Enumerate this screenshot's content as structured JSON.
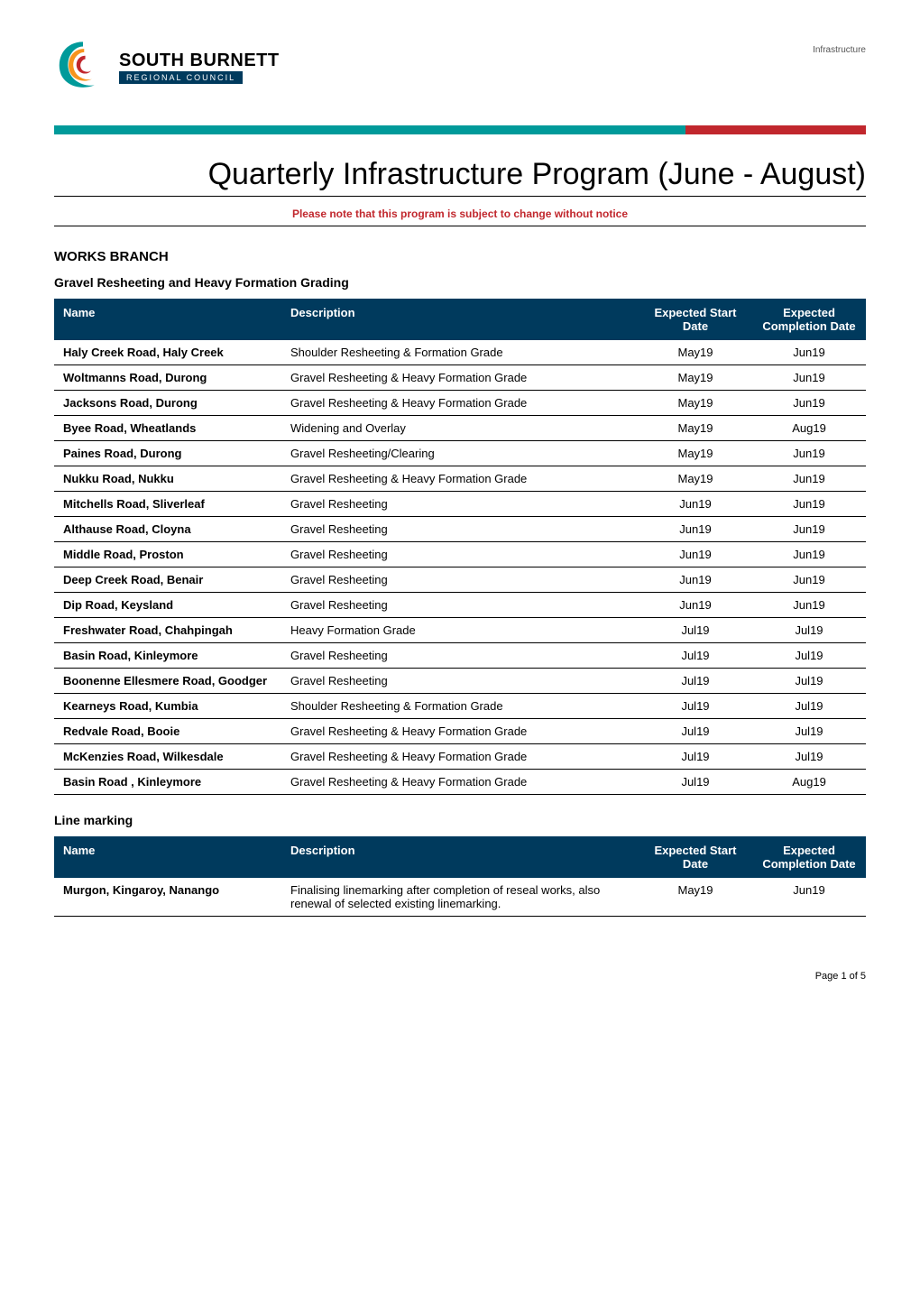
{
  "headerLabel": "Infrastructure",
  "logo": {
    "textTop": "SOUTH BURNETT",
    "textBottom": "REGIONAL COUNCIL",
    "swirlColors": {
      "outer": "#009a9a",
      "mid": "#f7941d",
      "inner": "#c1272d"
    },
    "bandColor": "#003a5d"
  },
  "dividerColors": {
    "teal": "#009a9a",
    "red": "#c1272d"
  },
  "pageTitle": "Quarterly Infrastructure Program (June - August)",
  "notice": "Please note that this program is subject to change without notice",
  "worksBranch": {
    "heading": "WORKS BRANCH",
    "gravel": {
      "subheading": "Gravel Resheeting and Heavy Formation Grading",
      "columns": [
        "Name",
        "Description",
        "Expected Start Date",
        "Expected Completion Date"
      ],
      "rows": [
        {
          "name": "Haly Creek Road, Haly Creek",
          "desc": "Shoulder Resheeting & Formation Grade",
          "start": "May19",
          "end": "Jun19"
        },
        {
          "name": "Woltmanns Road, Durong",
          "desc": "Gravel Resheeting & Heavy Formation Grade",
          "start": "May19",
          "end": "Jun19"
        },
        {
          "name": "Jacksons Road, Durong",
          "desc": "Gravel Resheeting & Heavy Formation Grade",
          "start": "May19",
          "end": "Jun19"
        },
        {
          "name": "Byee Road, Wheatlands",
          "desc": "Widening and Overlay",
          "start": "May19",
          "end": "Aug19"
        },
        {
          "name": "Paines Road, Durong",
          "desc": "Gravel Resheeting/Clearing",
          "start": "May19",
          "end": "Jun19"
        },
        {
          "name": "Nukku Road, Nukku",
          "desc": "Gravel Resheeting & Heavy Formation Grade",
          "start": "May19",
          "end": "Jun19"
        },
        {
          "name": "Mitchells Road, Sliverleaf",
          "desc": "Gravel Resheeting",
          "start": "Jun19",
          "end": "Jun19"
        },
        {
          "name": "Althause Road, Cloyna",
          "desc": "Gravel Resheeting",
          "start": "Jun19",
          "end": "Jun19"
        },
        {
          "name": "Middle Road, Proston",
          "desc": "Gravel Resheeting",
          "start": "Jun19",
          "end": "Jun19"
        },
        {
          "name": "Deep Creek Road, Benair",
          "desc": "Gravel Resheeting",
          "start": "Jun19",
          "end": "Jun19"
        },
        {
          "name": "Dip Road, Keysland",
          "desc": "Gravel Resheeting",
          "start": "Jun19",
          "end": "Jun19"
        },
        {
          "name": "Freshwater Road, Chahpingah",
          "desc": "Heavy Formation Grade",
          "start": "Jul19",
          "end": "Jul19"
        },
        {
          "name": "Basin Road, Kinleymore",
          "desc": "Gravel Resheeting",
          "start": "Jul19",
          "end": "Jul19"
        },
        {
          "name": "Boonenne Ellesmere Road, Goodger",
          "desc": "Gravel Resheeting",
          "start": "Jul19",
          "end": "Jul19"
        },
        {
          "name": "Kearneys Road, Kumbia",
          "desc": "Shoulder Resheeting & Formation Grade",
          "start": "Jul19",
          "end": "Jul19"
        },
        {
          "name": "Redvale Road, Booie",
          "desc": "Gravel Resheeting & Heavy Formation Grade",
          "start": "Jul19",
          "end": "Jul19"
        },
        {
          "name": "McKenzies Road, Wilkesdale",
          "desc": "Gravel Resheeting & Heavy Formation Grade",
          "start": "Jul19",
          "end": "Jul19"
        },
        {
          "name": "Basin Road , Kinleymore",
          "desc": "Gravel Resheeting & Heavy Formation Grade",
          "start": "Jul19",
          "end": "Aug19"
        }
      ]
    },
    "lineMarking": {
      "subheading": "Line marking",
      "columns": [
        "Name",
        "Description",
        "Expected Start Date",
        "Expected Completion Date"
      ],
      "rows": [
        {
          "name": "Murgon, Kingaroy, Nanango",
          "desc": "Finalising linemarking after completion of reseal works, also renewal of selected existing linemarking.",
          "start": "May19",
          "end": "Jun19"
        }
      ]
    }
  },
  "footer": "Page 1 of 5",
  "tableHeader": {
    "bg": "#003a5d",
    "fg": "#ffffff"
  }
}
